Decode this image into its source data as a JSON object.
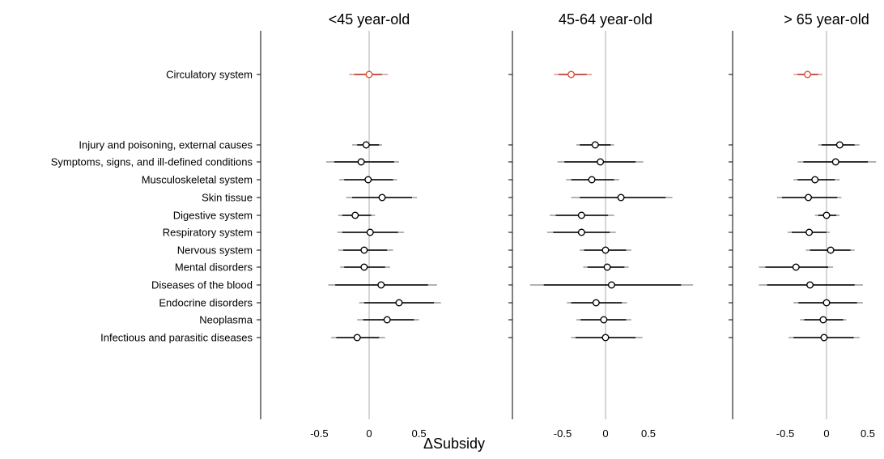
{
  "chart_data": {
    "type": "forest",
    "xlabel": "ΔSubsidy",
    "xticks": [
      -0.5,
      0,
      0.5
    ],
    "xtick_labels": [
      "-0.5",
      "0",
      "0.5"
    ],
    "categories": [
      "Circulatory system",
      "Injury and poisoning, external causes",
      "Symptoms, signs, and ill-defined conditions",
      "Musculoskeletal system",
      "Skin tissue",
      "Digestive system",
      "Respiratory system",
      "Nervous system",
      "Mental disorders",
      "Diseases of the blood",
      "Endocrine disorders",
      "Neoplasma",
      "Infectious and parasitic diseases"
    ],
    "colors": {
      "highlight": "#e8482a",
      "highlight_ci": "#b3332a",
      "default": "#000000",
      "ci_outer": "#9a9a9a",
      "zero_line": "#c8c8c8"
    },
    "panels": [
      {
        "title": "<45 year-old",
        "xlim": [
          -1.25,
          0.85
        ],
        "estimates": [
          0.0,
          -0.03,
          -0.08,
          -0.01,
          0.13,
          -0.14,
          0.01,
          -0.05,
          -0.05,
          0.12,
          0.3,
          0.18,
          -0.12
        ],
        "ci95": [
          [
            -0.2,
            0.19
          ],
          [
            -0.17,
            0.13
          ],
          [
            -0.43,
            0.3
          ],
          [
            -0.3,
            0.28
          ],
          [
            -0.23,
            0.48
          ],
          [
            -0.31,
            0.06
          ],
          [
            -0.32,
            0.35
          ],
          [
            -0.31,
            0.24
          ],
          [
            -0.29,
            0.21
          ],
          [
            -0.41,
            0.68
          ],
          [
            -0.1,
            0.72
          ],
          [
            -0.12,
            0.5
          ],
          [
            -0.38,
            0.16
          ]
        ],
        "ci90": [
          [
            -0.15,
            0.13
          ],
          [
            -0.12,
            0.1
          ],
          [
            -0.35,
            0.25
          ],
          [
            -0.25,
            0.24
          ],
          [
            -0.17,
            0.43
          ],
          [
            -0.27,
            0.02
          ],
          [
            -0.27,
            0.29
          ],
          [
            -0.26,
            0.18
          ],
          [
            -0.25,
            0.16
          ],
          [
            -0.34,
            0.59
          ],
          [
            -0.05,
            0.65
          ],
          [
            -0.06,
            0.45
          ],
          [
            -0.33,
            0.1
          ]
        ],
        "highlight": [
          true,
          false,
          false,
          false,
          false,
          false,
          false,
          false,
          false,
          false,
          false,
          false,
          false
        ]
      },
      {
        "title": "45-64 year-old",
        "xlim": [
          -1.1,
          0.85
        ],
        "estimates": [
          -0.4,
          -0.12,
          -0.06,
          -0.16,
          0.18,
          -0.28,
          -0.28,
          0.0,
          0.02,
          0.07,
          -0.11,
          -0.02,
          0.0
        ],
        "ci95": [
          [
            -0.6,
            -0.16
          ],
          [
            -0.34,
            0.1
          ],
          [
            -0.56,
            0.44
          ],
          [
            -0.46,
            0.16
          ],
          [
            -0.4,
            0.78
          ],
          [
            -0.65,
            0.1
          ],
          [
            -0.68,
            0.12
          ],
          [
            -0.3,
            0.3
          ],
          [
            -0.26,
            0.27
          ],
          [
            -0.88,
            1.02
          ],
          [
            -0.45,
            0.25
          ],
          [
            -0.34,
            0.3
          ],
          [
            -0.4,
            0.43
          ]
        ],
        "ci90": [
          [
            -0.55,
            -0.22
          ],
          [
            -0.3,
            0.06
          ],
          [
            -0.48,
            0.35
          ],
          [
            -0.4,
            0.1
          ],
          [
            -0.3,
            0.7
          ],
          [
            -0.58,
            0.03
          ],
          [
            -0.61,
            0.05
          ],
          [
            -0.25,
            0.24
          ],
          [
            -0.21,
            0.22
          ],
          [
            -0.72,
            0.88
          ],
          [
            -0.4,
            0.19
          ],
          [
            -0.29,
            0.24
          ],
          [
            -0.35,
            0.35
          ]
        ],
        "highlight": [
          true,
          false,
          false,
          false,
          false,
          false,
          false,
          false,
          false,
          false,
          false,
          false,
          false
        ]
      },
      {
        "title": "> 65 year-old",
        "xlim": [
          -0.85,
          0.65
        ],
        "estimates": [
          -0.23,
          0.16,
          0.11,
          -0.14,
          -0.22,
          0.0,
          -0.21,
          0.05,
          -0.37,
          -0.2,
          0.0,
          -0.04,
          -0.03
        ],
        "ci95": [
          [
            -0.4,
            -0.05
          ],
          [
            -0.1,
            0.4
          ],
          [
            -0.35,
            0.6
          ],
          [
            -0.4,
            0.16
          ],
          [
            -0.6,
            0.18
          ],
          [
            -0.14,
            0.16
          ],
          [
            -0.47,
            0.04
          ],
          [
            -0.25,
            0.34
          ],
          [
            -0.82,
            0.08
          ],
          [
            -0.82,
            0.44
          ],
          [
            -0.4,
            0.44
          ],
          [
            -0.32,
            0.24
          ],
          [
            -0.46,
            0.4
          ]
        ],
        "ci90": [
          [
            -0.35,
            -0.1
          ],
          [
            -0.06,
            0.34
          ],
          [
            -0.28,
            0.5
          ],
          [
            -0.35,
            0.1
          ],
          [
            -0.54,
            0.13
          ],
          [
            -0.1,
            0.12
          ],
          [
            -0.42,
            0.0
          ],
          [
            -0.2,
            0.29
          ],
          [
            -0.74,
            0.02
          ],
          [
            -0.72,
            0.34
          ],
          [
            -0.34,
            0.37
          ],
          [
            -0.27,
            0.2
          ],
          [
            -0.4,
            0.33
          ]
        ],
        "highlight": [
          true,
          false,
          false,
          false,
          false,
          false,
          false,
          false,
          false,
          false,
          false,
          false,
          false
        ]
      }
    ],
    "grid": false,
    "legend": "none"
  }
}
